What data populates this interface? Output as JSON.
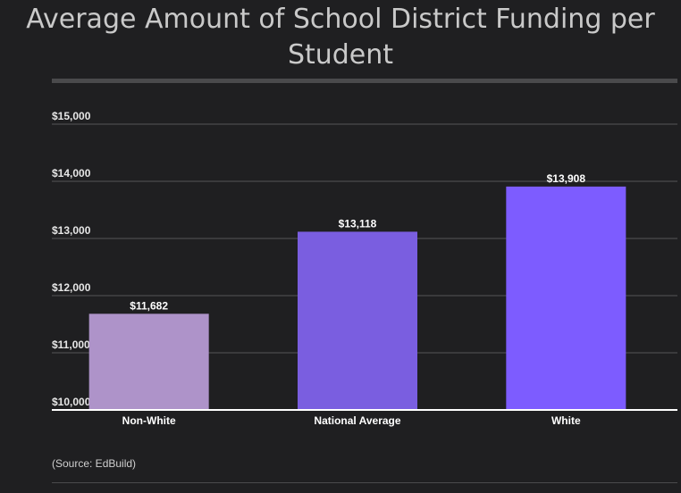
{
  "chart_data": {
    "type": "bar",
    "title": "Average Amount of School District Funding per Student",
    "categories": [
      "Non-White",
      "National Average",
      "White"
    ],
    "values": [
      11682,
      13118,
      13908
    ],
    "value_labels": [
      "$11,682",
      "$13,118",
      "$13,908"
    ],
    "colors": [
      "#ae93c9",
      "#7a5ee0",
      "#7d5cff"
    ],
    "ylim": [
      10000,
      15000
    ],
    "yticks": [
      10000,
      11000,
      12000,
      13000,
      14000,
      15000
    ],
    "ytick_labels": [
      "$10,000",
      "$11,000",
      "$12,000",
      "$13,000",
      "$14,000",
      "$15,000"
    ],
    "grid": true,
    "source": "(Source: EdBuild)"
  }
}
